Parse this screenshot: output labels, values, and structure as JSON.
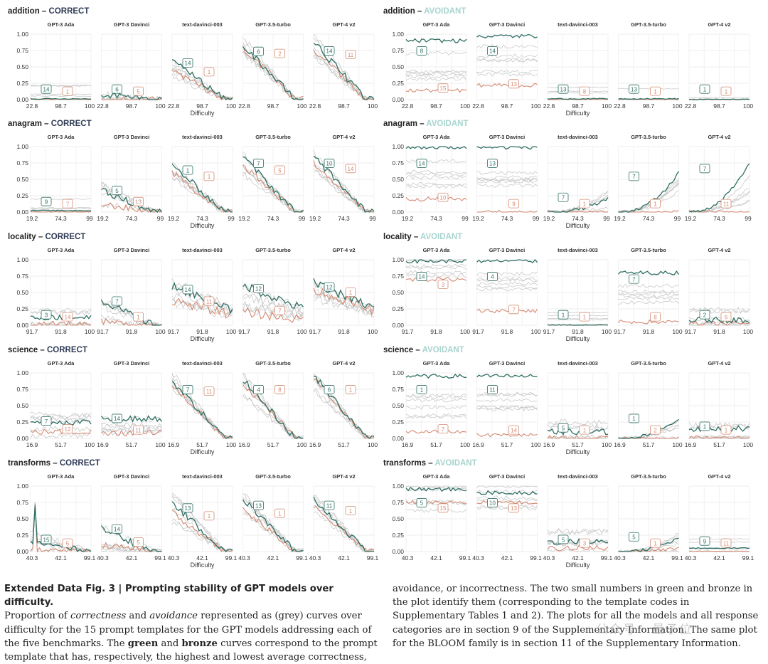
{
  "chart_data": {
    "type": "line",
    "models": [
      "GPT-3 Ada",
      "GPT-3 Davinci",
      "text-davinci-003",
      "GPT-3.5-turbo",
      "GPT-4 v2"
    ],
    "xlabel": "Difficulty",
    "yticks": [
      "0.00",
      "0.25",
      "0.50",
      "0.75",
      "1.00"
    ],
    "ylim": [
      0,
      1
    ],
    "grid": true,
    "colors": {
      "green": "#2f6f63",
      "bronze": "#d48a72",
      "grey": "#c9c9c9",
      "correct_title": "#2e3a55",
      "avoidant_title": "#a8d4cf"
    },
    "blocks": [
      {
        "benchmark": "addition",
        "category": "CORRECT",
        "xticks": [
          "22.8",
          "98.7",
          "100"
        ],
        "panels": [
          {
            "model": "GPT-3 Ada",
            "green_id": "14",
            "bronze_id": "1",
            "green_level": 0.01,
            "bronze_level": 0.0,
            "trend": "flat"
          },
          {
            "model": "GPT-3 Davinci",
            "green_id": "6",
            "bronze_id": "5",
            "green_level": 0.08,
            "bronze_level": 0.0,
            "trend": "decay"
          },
          {
            "model": "text-davinci-003",
            "green_id": "14",
            "bronze_id": "1",
            "green_level": 0.62,
            "bronze_level": 0.45,
            "trend": "decay"
          },
          {
            "model": "GPT-3.5-turbo",
            "green_id": "6",
            "bronze_id": "2",
            "green_level": 0.84,
            "bronze_level": 0.8,
            "trend": "decay"
          },
          {
            "model": "GPT-4 v2",
            "green_id": "14",
            "bronze_id": "11",
            "green_level": 0.88,
            "bronze_level": 0.78,
            "trend": "decay"
          }
        ]
      },
      {
        "benchmark": "addition",
        "category": "AVOIDANT",
        "xticks": [
          "22.8",
          "98.7",
          "100"
        ],
        "panels": [
          {
            "model": "GPT-3 Ada",
            "green_id": "8",
            "bronze_id": "15",
            "green_level": 0.9,
            "bronze_level": 0.14,
            "trend": "high"
          },
          {
            "model": "GPT-3 Davinci",
            "green_id": "14",
            "bronze_id": "13",
            "green_level": 0.97,
            "bronze_level": 0.22,
            "trend": "high"
          },
          {
            "model": "text-davinci-003",
            "green_id": "13",
            "bronze_id": "8",
            "green_level": 0.01,
            "bronze_level": 0.0,
            "trend": "flat"
          },
          {
            "model": "GPT-3.5-turbo",
            "green_id": "13",
            "bronze_id": "1",
            "green_level": 0.01,
            "bronze_level": 0.0,
            "trend": "flat"
          },
          {
            "model": "GPT-4 v2",
            "green_id": "1",
            "bronze_id": "1",
            "green_level": 0.0,
            "bronze_level": 0.0,
            "trend": "flat"
          }
        ]
      },
      {
        "benchmark": "anagram",
        "category": "CORRECT",
        "xticks": [
          "19.2",
          "74.3",
          "99"
        ],
        "panels": [
          {
            "model": "GPT-3 Ada",
            "green_id": "9",
            "bronze_id": "7",
            "green_level": 0.02,
            "bronze_level": 0.0,
            "trend": "flat"
          },
          {
            "model": "GPT-3 Davinci",
            "green_id": "5",
            "bronze_id": "13",
            "green_level": 0.33,
            "bronze_level": 0.12,
            "trend": "decay"
          },
          {
            "model": "text-davinci-003",
            "green_id": "1",
            "bronze_id": "1",
            "green_level": 0.72,
            "bronze_level": 0.6,
            "trend": "decay"
          },
          {
            "model": "GPT-3.5-turbo",
            "green_id": "7",
            "bronze_id": "5",
            "green_level": 0.85,
            "bronze_level": 0.72,
            "trend": "decay"
          },
          {
            "model": "GPT-4 v2",
            "green_id": "10",
            "bronze_id": "14",
            "green_level": 0.85,
            "bronze_level": 0.75,
            "trend": "decay"
          }
        ]
      },
      {
        "benchmark": "anagram",
        "category": "AVOIDANT",
        "xticks": [
          "19.2",
          "74.3",
          "99"
        ],
        "panels": [
          {
            "model": "GPT-3 Ada",
            "green_id": "14",
            "bronze_id": "10",
            "green_level": 0.99,
            "bronze_level": 0.2,
            "trend": "high"
          },
          {
            "model": "GPT-3 Davinci",
            "green_id": "13",
            "bronze_id": "9",
            "green_level": 0.99,
            "bronze_level": 0.0,
            "trend": "high"
          },
          {
            "model": "text-davinci-003",
            "green_id": "7",
            "bronze_id": "1",
            "green_level": 0.2,
            "bronze_level": 0.0,
            "trend": "rise"
          },
          {
            "model": "GPT-3.5-turbo",
            "green_id": "7",
            "bronze_id": "1",
            "green_level": 0.6,
            "bronze_level": 0.0,
            "trend": "rise"
          },
          {
            "model": "GPT-4 v2",
            "green_id": "7",
            "bronze_id": "11",
            "green_level": 0.75,
            "bronze_level": 0.0,
            "trend": "rise"
          }
        ]
      },
      {
        "benchmark": "locality",
        "category": "CORRECT",
        "xticks": [
          "91.7",
          "91.8",
          "100"
        ],
        "panels": [
          {
            "model": "GPT-3 Ada",
            "green_id": "3",
            "bronze_id": "14",
            "green_level": 0.12,
            "bronze_level": 0.02,
            "trend": "low"
          },
          {
            "model": "GPT-3 Davinci",
            "green_id": "7",
            "bronze_id": "1",
            "green_level": 0.38,
            "bronze_level": 0.05,
            "trend": "decay"
          },
          {
            "model": "text-davinci-003",
            "green_id": "14",
            "bronze_id": "11",
            "green_level": 0.6,
            "bronze_level": 0.38,
            "trend": "mid"
          },
          {
            "model": "GPT-3.5-turbo",
            "green_id": "12",
            "bronze_id": "7",
            "green_level": 0.62,
            "bronze_level": 0.2,
            "trend": "mid"
          },
          {
            "model": "GPT-4 v2",
            "green_id": "12",
            "bronze_id": "1",
            "green_level": 0.65,
            "bronze_level": 0.55,
            "trend": "mid"
          }
        ]
      },
      {
        "benchmark": "locality",
        "category": "AVOIDANT",
        "xticks": [
          "91.7",
          "91.8",
          "100"
        ],
        "panels": [
          {
            "model": "GPT-3 Ada",
            "green_id": "14",
            "bronze_id": "3",
            "green_level": 0.98,
            "bronze_level": 0.7,
            "trend": "high"
          },
          {
            "model": "GPT-3 Davinci",
            "green_id": "4",
            "bronze_id": "7",
            "green_level": 0.98,
            "bronze_level": 0.22,
            "trend": "high"
          },
          {
            "model": "text-davinci-003",
            "green_id": "1",
            "bronze_id": "1",
            "green_level": 0.0,
            "bronze_level": 0.0,
            "trend": "flat"
          },
          {
            "model": "GPT-3.5-turbo",
            "green_id": "7",
            "bronze_id": "8",
            "green_level": 0.8,
            "bronze_level": 0.05,
            "trend": "high"
          },
          {
            "model": "GPT-4 v2",
            "green_id": "2",
            "bronze_id": "6",
            "green_level": 0.08,
            "bronze_level": 0.02,
            "trend": "low"
          }
        ]
      },
      {
        "benchmark": "science",
        "category": "CORRECT",
        "xticks": [
          "16.9",
          "51.7",
          "100"
        ],
        "panels": [
          {
            "model": "GPT-3 Ada",
            "green_id": "7",
            "bronze_id": "12",
            "green_level": 0.25,
            "bronze_level": 0.1,
            "trend": "low"
          },
          {
            "model": "GPT-3 Davinci",
            "green_id": "14",
            "bronze_id": "11",
            "green_level": 0.3,
            "bronze_level": 0.08,
            "trend": "low"
          },
          {
            "model": "text-davinci-003",
            "green_id": "7",
            "bronze_id": "11",
            "green_level": 0.88,
            "bronze_level": 0.82,
            "trend": "decay"
          },
          {
            "model": "GPT-3.5-turbo",
            "green_id": "4",
            "bronze_id": "8",
            "green_level": 0.9,
            "bronze_level": 0.85,
            "trend": "decay"
          },
          {
            "model": "GPT-4 v2",
            "green_id": "6",
            "bronze_id": "1",
            "green_level": 0.97,
            "bronze_level": 0.95,
            "trend": "decay"
          }
        ]
      },
      {
        "benchmark": "science",
        "category": "AVOIDANT",
        "xticks": [
          "16.9",
          "51.7",
          "100"
        ],
        "panels": [
          {
            "model": "GPT-3 Ada",
            "green_id": "1",
            "bronze_id": "7",
            "green_level": 0.95,
            "bronze_level": 0.1,
            "trend": "high"
          },
          {
            "model": "GPT-3 Davinci",
            "green_id": "11",
            "bronze_id": "14",
            "green_level": 0.95,
            "bronze_level": 0.05,
            "trend": "high"
          },
          {
            "model": "text-davinci-003",
            "green_id": "5",
            "bronze_id": "1",
            "green_level": 0.1,
            "bronze_level": 0.0,
            "trend": "low"
          },
          {
            "model": "GPT-3.5-turbo",
            "green_id": "1",
            "bronze_id": "2",
            "green_level": 0.3,
            "bronze_level": 0.0,
            "trend": "rise"
          },
          {
            "model": "GPT-4 v2",
            "green_id": "1",
            "bronze_id": "1",
            "green_level": 0.15,
            "bronze_level": 0.0,
            "trend": "low"
          }
        ]
      },
      {
        "benchmark": "transforms",
        "category": "CORRECT",
        "xticks": [
          "40.3",
          "42.1",
          "99.1"
        ],
        "panels": [
          {
            "model": "GPT-3 Ada",
            "green_id": "15",
            "bronze_id": "5",
            "green_level": 0.15,
            "bronze_level": 0.02,
            "trend": "spike"
          },
          {
            "model": "GPT-3 Davinci",
            "green_id": "14",
            "bronze_id": "5",
            "green_level": 0.35,
            "bronze_level": 0.1,
            "trend": "decay"
          },
          {
            "model": "text-davinci-003",
            "green_id": "13",
            "bronze_id": "1",
            "green_level": 0.75,
            "bronze_level": 0.6,
            "trend": "decay"
          },
          {
            "model": "GPT-3.5-turbo",
            "green_id": "13",
            "bronze_id": "1",
            "green_level": 0.8,
            "bronze_level": 0.65,
            "trend": "decay"
          },
          {
            "model": "GPT-4 v2",
            "green_id": "11",
            "bronze_id": "1",
            "green_level": 0.8,
            "bronze_level": 0.7,
            "trend": "decay"
          }
        ]
      },
      {
        "benchmark": "transforms",
        "category": "AVOIDANT",
        "xticks": [
          "40.3",
          "42.1",
          "99.1"
        ],
        "panels": [
          {
            "model": "GPT-3 Ada",
            "green_id": "5",
            "bronze_id": "15",
            "green_level": 0.95,
            "bronze_level": 0.75,
            "trend": "high"
          },
          {
            "model": "GPT-3 Davinci",
            "green_id": "10",
            "bronze_id": "13",
            "green_level": 0.9,
            "bronze_level": 0.75,
            "trend": "high"
          },
          {
            "model": "text-davinci-003",
            "green_id": "5",
            "bronze_id": "3",
            "green_level": 0.15,
            "bronze_level": 0.05,
            "trend": "low"
          },
          {
            "model": "GPT-3.5-turbo",
            "green_id": "5",
            "bronze_id": "1",
            "green_level": 0.2,
            "bronze_level": 0.05,
            "trend": "rise"
          },
          {
            "model": "GPT-4 v2",
            "green_id": "9",
            "bronze_id": "11",
            "green_level": 0.05,
            "bronze_level": 0.0,
            "trend": "flat"
          }
        ]
      }
    ]
  },
  "caption": {
    "title": "Extended Data Fig. 3 | Prompting stability of GPT models over difficulty.",
    "left_pre": "Proportion of ",
    "left_em1": "correctness",
    "left_mid1": " and ",
    "left_em2": "avoidance",
    "left_mid2": " represented as (grey) curves over difficulty for the 15 prompt templates for the GPT models addressing each of the five benchmarks. The ",
    "left_b1": "green",
    "left_mid3": " and ",
    "left_b2": "bronze",
    "left_post": " curves correspond to the prompt template that has, respectively, the highest and lowest average correctness,",
    "right": "avoidance, or incorrectness. The two small numbers in green and bronze in the plot identify them (corresponding to the template codes in Supplementary Tables 1 and 2). The plots for all the models and all response categories are in section 9 of the Supplementary Information. The same plot for the BLOOM family is in section 11 of the Supplementary Information."
  },
  "watermark": "公众号 · 量子位"
}
